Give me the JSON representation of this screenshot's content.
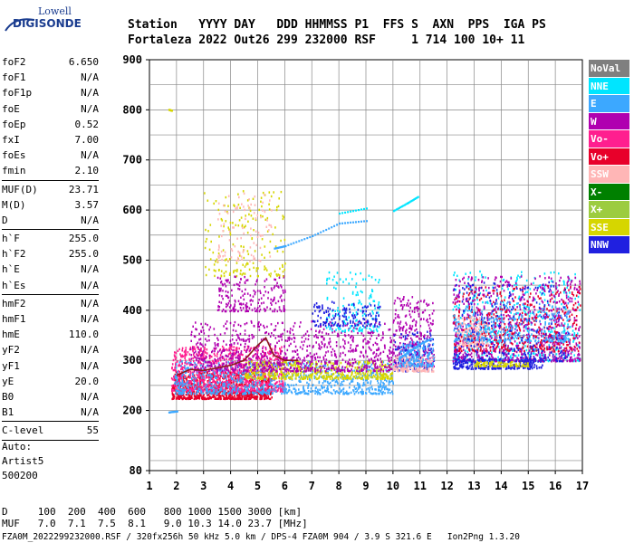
{
  "logo": {
    "top": "Lowell",
    "bottom": "DIGISONDE"
  },
  "header": {
    "line1": "Station   YYYY DAY   DDD HHMMSS P1  FFS S  AXN  PPS  IGA PS",
    "line2": "Fortaleza 2022 Out26 299 232000 RSF     1 714 100 10+ 11"
  },
  "params": [
    {
      "label": "foF2",
      "value": "6.650"
    },
    {
      "label": "foF1",
      "value": "N/A"
    },
    {
      "label": "foF1p",
      "value": "N/A"
    },
    {
      "label": "foE",
      "value": "N/A"
    },
    {
      "label": "foEp",
      "value": "0.52"
    },
    {
      "label": "fxI",
      "value": "7.00"
    },
    {
      "label": "foEs",
      "value": "N/A"
    },
    {
      "label": "fmin",
      "value": "2.10"
    },
    {
      "sep": true
    },
    {
      "label": "MUF(D)",
      "value": "23.71"
    },
    {
      "label": "M(D)",
      "value": "3.57"
    },
    {
      "label": "D",
      "value": "N/A"
    },
    {
      "sep": true
    },
    {
      "label": "h`F",
      "value": "255.0"
    },
    {
      "label": "h`F2",
      "value": "255.0"
    },
    {
      "label": "h`E",
      "value": "N/A"
    },
    {
      "label": "h`Es",
      "value": "N/A"
    },
    {
      "sep": true
    },
    {
      "label": "hmF2",
      "value": "N/A"
    },
    {
      "label": "hmF1",
      "value": "N/A"
    },
    {
      "label": "hmE",
      "value": "110.0"
    },
    {
      "label": "yF2",
      "value": "N/A"
    },
    {
      "label": "yF1",
      "value": "N/A"
    },
    {
      "label": "yE",
      "value": "20.0"
    },
    {
      "label": "B0",
      "value": "N/A"
    },
    {
      "label": "B1",
      "value": "N/A"
    },
    {
      "sep": true
    },
    {
      "label": "C-level",
      "value": "55"
    },
    {
      "sep": true
    }
  ],
  "auto_block": {
    "line1": "Auto:",
    "line2": "Artist5",
    "line3": "500200"
  },
  "legend": [
    {
      "label": "NoVal",
      "color": "#7f7f7f"
    },
    {
      "label": "NNE",
      "color": "#00e5ff"
    },
    {
      "label": "E",
      "color": "#3ca8ff"
    },
    {
      "label": "W",
      "color": "#b000b0"
    },
    {
      "label": "Vo-",
      "color": "#ff1f8f"
    },
    {
      "label": "Vo+",
      "color": "#e8002a"
    },
    {
      "label": "SSW",
      "color": "#ffb6b6"
    },
    {
      "label": "X-",
      "color": "#008000"
    },
    {
      "label": "X+",
      "color": "#9ccc40"
    },
    {
      "label": "SSE",
      "color": "#d6d600"
    },
    {
      "label": "NNW",
      "color": "#2020e0"
    }
  ],
  "footer": {
    "line1": "D     100  200  400  600   800 1000 1500 3000 [km]",
    "line2": "MUF   7.0  7.1  7.5  8.1   9.0 10.3 14.0 23.7 [MHz]",
    "line3": "FZA0M_2022299232000.RSF / 320fx256h 50 kHz 5.0 km / DPS-4 FZA0M 904 / 3.9 S 321.6 E   Ion2Png 1.3.20"
  },
  "chart_data": {
    "type": "scatter",
    "title": "",
    "xlabel": "",
    "ylabel": "",
    "xlim": [
      1,
      17
    ],
    "ylim": [
      80,
      900
    ],
    "x_ticks": [
      1,
      2,
      3,
      4,
      5,
      6,
      7,
      8,
      9,
      10,
      11,
      12,
      13,
      14,
      15,
      16,
      17
    ],
    "y_ticks": [
      80,
      200,
      300,
      400,
      500,
      600,
      700,
      800,
      900
    ],
    "grid": true,
    "clusters": [
      {
        "series": "Vo+",
        "x": [
          1.8,
          5.5
        ],
        "y": [
          225,
          280
        ],
        "n": 900
      },
      {
        "series": "Vo-",
        "x": [
          1.8,
          6.0
        ],
        "y": [
          240,
          330
        ],
        "n": 900
      },
      {
        "series": "E",
        "x": [
          1.9,
          10.0
        ],
        "y": [
          235,
          300
        ],
        "n": 900
      },
      {
        "series": "SSE",
        "x": [
          4.5,
          10.0
        ],
        "y": [
          265,
          300
        ],
        "n": 500
      },
      {
        "series": "W",
        "x": [
          2.5,
          10.0
        ],
        "y": [
          280,
          380
        ],
        "n": 900
      },
      {
        "series": "W",
        "x": [
          3.5,
          6.0
        ],
        "y": [
          400,
          470
        ],
        "n": 200
      },
      {
        "series": "SSE",
        "x": [
          3.0,
          6.0
        ],
        "y": [
          470,
          640
        ],
        "n": 180
      },
      {
        "series": "SSW",
        "x": [
          3.5,
          5.5
        ],
        "y": [
          500,
          640
        ],
        "n": 100
      },
      {
        "series": "NNE",
        "x": [
          7.5,
          9.5
        ],
        "y": [
          360,
          480
        ],
        "n": 150
      },
      {
        "series": "NNW",
        "x": [
          7.0,
          9.5
        ],
        "y": [
          370,
          420
        ],
        "n": 150
      },
      {
        "series": "W",
        "x": [
          10.0,
          11.5
        ],
        "y": [
          290,
          430
        ],
        "n": 300
      },
      {
        "series": "NNW",
        "x": [
          10.0,
          11.5
        ],
        "y": [
          280,
          360
        ],
        "n": 120
      },
      {
        "series": "SSW",
        "x": [
          10.0,
          11.5
        ],
        "y": [
          280,
          310
        ],
        "n": 150
      },
      {
        "series": "E",
        "x": [
          10.2,
          11.5
        ],
        "y": [
          290,
          340
        ],
        "n": 150
      },
      {
        "series": "NNE",
        "x": [
          12.2,
          16.9
        ],
        "y": [
          300,
          480
        ],
        "n": 500
      },
      {
        "series": "W",
        "x": [
          12.2,
          16.9
        ],
        "y": [
          300,
          470
        ],
        "n": 800
      },
      {
        "series": "NNW",
        "x": [
          12.2,
          15.5
        ],
        "y": [
          285,
          305
        ],
        "n": 250
      },
      {
        "series": "SSW",
        "x": [
          12.3,
          13.5
        ],
        "y": [
          330,
          390
        ],
        "n": 200
      },
      {
        "series": "Vo+",
        "x": [
          12.2,
          16.9
        ],
        "y": [
          320,
          450
        ],
        "n": 400
      },
      {
        "series": "E",
        "x": [
          12.2,
          16.5
        ],
        "y": [
          340,
          420
        ],
        "n": 300
      },
      {
        "series": "SSE",
        "x": [
          13.0,
          15.0
        ],
        "y": [
          290,
          300
        ],
        "n": 100
      },
      {
        "series": "NNW",
        "x": [
          12.2,
          16.5
        ],
        "y": [
          300,
          460
        ],
        "n": 250
      }
    ],
    "traces": [
      {
        "series": "E",
        "points": [
          [
            5.6,
            525
          ],
          [
            6.0,
            530
          ],
          [
            7.0,
            550
          ],
          [
            8.0,
            575
          ],
          [
            9.0,
            580
          ]
        ]
      },
      {
        "series": "NNE",
        "points": [
          [
            10.0,
            600
          ],
          [
            10.5,
            615
          ],
          [
            10.9,
            628
          ]
        ]
      },
      {
        "series": "NNE",
        "points": [
          [
            8.0,
            595
          ],
          [
            9.0,
            605
          ]
        ]
      },
      {
        "series": "E",
        "points": [
          [
            1.7,
            198
          ],
          [
            2.0,
            200
          ]
        ]
      },
      {
        "series": "SSE",
        "points": [
          [
            1.7,
            802
          ],
          [
            1.8,
            800
          ]
        ]
      },
      {
        "series": "E",
        "points": [
          [
            10.2,
            305
          ],
          [
            10.6,
            320
          ],
          [
            11.0,
            335
          ],
          [
            11.4,
            345
          ]
        ]
      }
    ],
    "muf_curve": [
      [
        2.0,
        270
      ],
      [
        2.5,
        282
      ],
      [
        3.0,
        280
      ],
      [
        3.5,
        285
      ],
      [
        4.0,
        290
      ],
      [
        4.5,
        300
      ],
      [
        5.0,
        330
      ],
      [
        5.3,
        345
      ],
      [
        5.6,
        310
      ],
      [
        6.0,
        300
      ],
      [
        6.5,
        300
      ]
    ]
  }
}
